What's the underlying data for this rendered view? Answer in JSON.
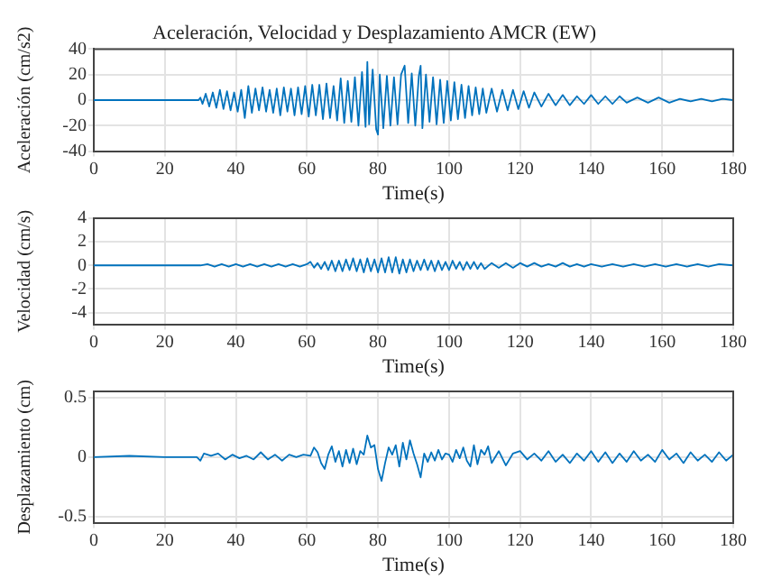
{
  "chart_data": [
    {
      "type": "line",
      "title": "Aceleración, Velocidad y Desplazamiento AMCR (EW)",
      "xlabel": "Time(s)",
      "ylabel": "Aceleración (cm/s2)",
      "xlim": [
        0,
        180
      ],
      "xticks": [
        0,
        20,
        40,
        60,
        80,
        100,
        120,
        140,
        160,
        180
      ],
      "ylim": [
        -40,
        40
      ],
      "yticks": [
        -40,
        -20,
        0,
        20,
        40
      ],
      "grid": true,
      "legend": false,
      "marker": "none",
      "line_style": "solid",
      "series": [
        {
          "color": "#0072bd",
          "x": [
            0,
            29.5,
            30,
            30.6,
            31.5,
            32.5,
            33.5,
            34.5,
            35.5,
            36.5,
            37.5,
            38.5,
            39.5,
            40.5,
            41.5,
            42.5,
            43.5,
            44.5,
            45.5,
            46.5,
            47.5,
            48.5,
            49.5,
            50.5,
            51.5,
            52.5,
            53.5,
            54.5,
            55.5,
            56.5,
            57.5,
            58.5,
            59.5,
            60.5,
            61.5,
            62.5,
            63.5,
            64.5,
            65.5,
            66.5,
            67.5,
            68.5,
            69.5,
            70.5,
            71.5,
            72.5,
            73.5,
            74.5,
            75.5,
            76.5,
            77,
            77.5,
            78.5,
            79.5,
            80,
            80.5,
            81.5,
            82.5,
            83.5,
            84.5,
            85.5,
            86.5,
            87.5,
            88.5,
            89.5,
            90.5,
            91.5,
            92,
            92.5,
            93.5,
            94.5,
            95.5,
            96.5,
            97.5,
            98.5,
            99.5,
            100.5,
            101.5,
            102.5,
            103.5,
            104.5,
            105.5,
            106.5,
            107.5,
            108.5,
            109.5,
            110.5,
            112,
            113.5,
            115,
            116.5,
            118,
            119.5,
            121,
            122.5,
            124,
            126,
            128,
            130,
            132,
            134,
            136,
            138,
            140,
            142,
            144,
            146,
            148,
            150,
            153,
            156,
            159,
            162,
            165,
            168,
            171,
            174,
            177,
            180
          ],
          "values": [
            0,
            0,
            2,
            -3,
            5,
            -5,
            6,
            -6,
            8,
            -7,
            7,
            -8,
            6,
            -9,
            8,
            -14,
            11,
            -10,
            9,
            -8,
            10,
            -9,
            8,
            -10,
            9,
            -12,
            10,
            -9,
            9,
            -12,
            10,
            -11,
            11,
            -13,
            12,
            -12,
            12,
            -15,
            13,
            -14,
            11,
            -16,
            17,
            -18,
            15,
            -17,
            18,
            -20,
            22,
            -21,
            30,
            -19,
            24,
            -23,
            -27,
            20,
            -22,
            19,
            -20,
            18,
            -19,
            20,
            27,
            -18,
            21,
            -20,
            19,
            27,
            -22,
            20,
            -17,
            18,
            -19,
            16,
            -18,
            15,
            -16,
            14,
            -15,
            12,
            -14,
            11,
            -12,
            10,
            -11,
            9,
            -10,
            9,
            -9,
            8,
            -8,
            8,
            -7,
            7,
            -6,
            6,
            -5,
            5,
            -4,
            4,
            -4,
            3,
            -3,
            4,
            -3,
            3,
            -3,
            3,
            -2,
            2,
            -2,
            2,
            -2,
            1,
            -1,
            1,
            -1,
            1,
            0
          ]
        }
      ]
    },
    {
      "type": "line",
      "xlabel": "Time(s)",
      "ylabel": "Velocidad (cm/s)",
      "xlim": [
        0,
        180
      ],
      "xticks": [
        0,
        20,
        40,
        60,
        80,
        100,
        120,
        140,
        160,
        180
      ],
      "ylim": [
        -5,
        4
      ],
      "yticks": [
        -4,
        -2,
        0,
        2,
        4
      ],
      "grid": true,
      "legend": false,
      "marker": "none",
      "line_style": "solid",
      "series": [
        {
          "color": "#0072bd",
          "x": [
            0,
            30,
            32,
            34,
            36,
            38,
            40,
            42,
            44,
            46,
            48,
            50,
            52,
            54,
            56,
            58,
            60,
            61,
            62,
            63,
            64,
            65,
            66,
            67,
            68,
            69,
            70,
            71,
            72,
            73,
            74,
            75,
            76,
            77,
            78,
            79,
            80,
            81,
            82,
            83,
            84,
            85,
            86,
            87,
            88,
            89,
            90,
            91,
            92,
            93,
            94,
            95,
            96,
            97,
            98,
            99,
            100,
            101,
            102,
            103,
            104,
            105,
            106,
            107,
            108,
            109,
            110,
            112,
            114,
            116,
            118,
            120,
            122,
            124,
            126,
            128,
            130,
            132,
            134,
            136,
            138,
            140,
            143,
            146,
            149,
            152,
            155,
            158,
            161,
            164,
            167,
            170,
            173,
            176,
            180
          ],
          "values": [
            0,
            0,
            0.1,
            -0.1,
            0.1,
            -0.1,
            0.1,
            -0.1,
            0.1,
            -0.1,
            0.1,
            -0.1,
            0.1,
            -0.1,
            0.1,
            -0.1,
            0.1,
            0.3,
            -0.2,
            0.2,
            -0.3,
            0.3,
            -0.4,
            0.4,
            -0.5,
            0.4,
            -0.5,
            0.5,
            -0.4,
            0.6,
            -0.5,
            0.5,
            -0.6,
            0.6,
            -0.5,
            0.5,
            -0.6,
            0.6,
            -0.6,
            0.7,
            -0.6,
            0.7,
            -0.7,
            0.5,
            -0.6,
            0.5,
            -0.5,
            0.4,
            -0.4,
            0.5,
            -0.4,
            0.4,
            -0.5,
            0.4,
            -0.4,
            0.3,
            -0.4,
            0.4,
            -0.3,
            0.3,
            -0.4,
            0.3,
            -0.3,
            0.3,
            -0.3,
            0.2,
            -0.3,
            0.2,
            -0.2,
            0.2,
            -0.2,
            0.2,
            -0.1,
            0.2,
            -0.1,
            0.1,
            -0.1,
            0.2,
            -0.1,
            0.1,
            -0.1,
            0.1,
            -0.1,
            0.1,
            -0.1,
            0.1,
            -0.1,
            0.1,
            -0.1,
            0.1,
            -0.1,
            0.1,
            -0.1,
            0.1,
            0
          ]
        }
      ]
    },
    {
      "type": "line",
      "xlabel": "Time(s)",
      "ylabel": "Desplazamiento (cm)",
      "xlim": [
        0,
        180
      ],
      "xticks": [
        0,
        20,
        40,
        60,
        80,
        100,
        120,
        140,
        160,
        180
      ],
      "ylim": [
        -0.55,
        0.55
      ],
      "yticks": [
        -0.5,
        0,
        0.5
      ],
      "grid": true,
      "legend": false,
      "marker": "none",
      "line_style": "solid",
      "series": [
        {
          "color": "#0072bd",
          "x": [
            0,
            10,
            20,
            29,
            30,
            31,
            33,
            35,
            37,
            39,
            41,
            43,
            45,
            47,
            49,
            51,
            53,
            55,
            57,
            59,
            61,
            62,
            63,
            64,
            65,
            66,
            67,
            68,
            69,
            70,
            71,
            72,
            73,
            74,
            75,
            76,
            77,
            78,
            79,
            80,
            81,
            82,
            83,
            84,
            85,
            86,
            87,
            88,
            89,
            90,
            91,
            92,
            93,
            94,
            95,
            96,
            97,
            98,
            99,
            100,
            101,
            102,
            103,
            104,
            105,
            106,
            107,
            108,
            109,
            110,
            111,
            112,
            114,
            116,
            118,
            120,
            122,
            124,
            126,
            128,
            130,
            132,
            134,
            136,
            138,
            140,
            142,
            144,
            146,
            148,
            150,
            152,
            154,
            156,
            158,
            160,
            162,
            164,
            166,
            168,
            170,
            172,
            174,
            176,
            178,
            180
          ],
          "values": [
            0,
            0.01,
            0,
            0,
            -0.03,
            0.03,
            0.01,
            0.03,
            -0.02,
            0.02,
            -0.01,
            0.01,
            -0.02,
            0.04,
            -0.02,
            0.02,
            -0.03,
            0.02,
            0,
            0.02,
            0.01,
            0.08,
            0.04,
            -0.05,
            -0.1,
            0.02,
            0.09,
            -0.04,
            0.05,
            -0.08,
            0.06,
            -0.05,
            0.07,
            -0.06,
            0.05,
            0.02,
            0.18,
            0.08,
            0.1,
            -0.1,
            -0.2,
            -0.05,
            0.08,
            0.02,
            0.1,
            -0.08,
            0.12,
            -0.02,
            0.14,
            0.03,
            -0.06,
            -0.17,
            0.03,
            -0.04,
            0.04,
            -0.03,
            0.06,
            -0.02,
            0.03,
            0.02,
            -0.04,
            0.06,
            -0.01,
            0.08,
            -0.03,
            -0.08,
            0.1,
            -0.06,
            0.06,
            0.02,
            0.09,
            -0.05,
            0.05,
            -0.07,
            0.03,
            0.05,
            -0.02,
            0.03,
            -0.03,
            0.05,
            -0.04,
            0.02,
            -0.05,
            0.03,
            -0.03,
            0.05,
            -0.04,
            0.04,
            -0.05,
            0.03,
            -0.04,
            0.05,
            -0.03,
            0.02,
            -0.04,
            0.06,
            -0.02,
            0.03,
            -0.05,
            0.04,
            -0.03,
            0.02,
            -0.04,
            0.04,
            -0.03,
            0.02
          ]
        }
      ]
    }
  ]
}
